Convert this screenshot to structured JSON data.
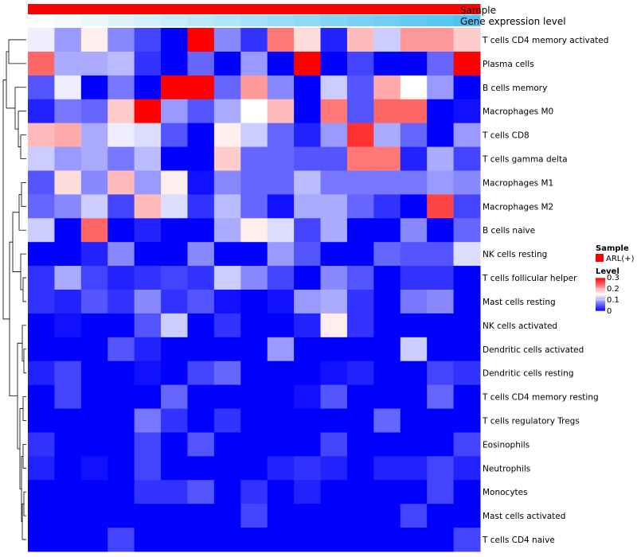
{
  "chart_data": {
    "type": "heatmap",
    "annotation_bars": [
      {
        "label": "Sample",
        "color": "#ff0000"
      },
      {
        "label": "Gene expression level",
        "colors_low_high": [
          "#ffffff",
          "#4cc3f2"
        ]
      }
    ],
    "rows": [
      "T cells CD4 memory activated",
      "Plasma cells",
      "B cells memory",
      "Macrophages M0",
      "T cells CD8",
      "T cells gamma delta",
      "Macrophages M1",
      "Macrophages M2",
      "B cells naive",
      "NK cells resting",
      "T cells follicular helper",
      "Mast cells resting",
      "NK cells activated",
      "Dendritic cells activated",
      "Dendritic cells resting",
      "T cells CD4 memory resting",
      "T cells regulatory  Tregs",
      "Eosinophils",
      "Neutrophils",
      "Monocytes",
      "Mast cells activated",
      "T cells CD4 naive"
    ],
    "n_columns": 17,
    "values": [
      [
        0.14,
        0.09,
        0.16,
        0.08,
        0.04,
        0.0,
        0.3,
        0.08,
        0.03,
        0.23,
        0.17,
        0.02,
        0.19,
        0.12,
        0.21,
        0.21,
        0.18
      ],
      [
        0.24,
        0.1,
        0.1,
        0.11,
        0.03,
        0.0,
        0.06,
        0.0,
        0.09,
        0.0,
        0.3,
        0.0,
        0.04,
        0.0,
        0.0,
        0.06,
        0.3
      ],
      [
        0.05,
        0.14,
        0.0,
        0.07,
        0.0,
        0.3,
        0.3,
        0.06,
        0.21,
        0.08,
        0.0,
        0.12,
        0.05,
        0.2,
        0.15,
        0.09,
        0.0
      ],
      [
        0.02,
        0.07,
        0.06,
        0.18,
        0.3,
        0.09,
        0.05,
        0.1,
        0.15,
        0.19,
        0.0,
        0.23,
        0.05,
        0.24,
        0.24,
        0.0,
        0.01
      ],
      [
        0.19,
        0.2,
        0.1,
        0.14,
        0.13,
        0.05,
        0.0,
        0.16,
        0.12,
        0.06,
        0.02,
        0.09,
        0.27,
        0.1,
        0.06,
        0.0,
        0.09
      ],
      [
        0.12,
        0.09,
        0.1,
        0.07,
        0.11,
        0.0,
        0.0,
        0.18,
        0.06,
        0.06,
        0.05,
        0.05,
        0.23,
        0.23,
        0.02,
        0.1,
        0.04
      ],
      [
        0.05,
        0.17,
        0.08,
        0.19,
        0.09,
        0.16,
        0.01,
        0.08,
        0.06,
        0.06,
        0.11,
        0.07,
        0.07,
        0.07,
        0.07,
        0.09,
        0.08
      ],
      [
        0.06,
        0.08,
        0.12,
        0.04,
        0.19,
        0.13,
        0.03,
        0.11,
        0.06,
        0.01,
        0.1,
        0.1,
        0.06,
        0.03,
        0.0,
        0.26,
        0.04
      ],
      [
        0.12,
        0.0,
        0.24,
        0.0,
        0.02,
        0.0,
        0.0,
        0.1,
        0.16,
        0.13,
        0.04,
        0.1,
        0.0,
        0.0,
        0.08,
        0.0,
        0.06
      ],
      [
        0.0,
        0.0,
        0.02,
        0.08,
        0.0,
        0.0,
        0.08,
        0.0,
        0.0,
        0.09,
        0.05,
        0.0,
        0.0,
        0.06,
        0.05,
        0.05,
        0.13
      ],
      [
        0.03,
        0.1,
        0.04,
        0.02,
        0.03,
        0.04,
        0.03,
        0.12,
        0.08,
        0.04,
        0.0,
        0.08,
        0.05,
        0.0,
        0.03,
        0.03,
        0.0
      ],
      [
        0.03,
        0.02,
        0.05,
        0.03,
        0.08,
        0.03,
        0.05,
        0.01,
        0.0,
        0.01,
        0.09,
        0.1,
        0.03,
        0.0,
        0.07,
        0.08,
        0.0
      ],
      [
        0.0,
        0.01,
        0.0,
        0.0,
        0.05,
        0.12,
        0.0,
        0.03,
        0.0,
        0.0,
        0.02,
        0.16,
        0.03,
        0.0,
        0.0,
        0.0,
        0.0
      ],
      [
        0.0,
        0.0,
        0.0,
        0.05,
        0.02,
        0.0,
        0.0,
        0.0,
        0.0,
        0.09,
        0.0,
        0.0,
        0.0,
        0.0,
        0.12,
        0.0,
        0.0
      ],
      [
        0.02,
        0.04,
        0.0,
        0.0,
        0.01,
        0.0,
        0.04,
        0.06,
        0.0,
        0.0,
        0.0,
        0.01,
        0.02,
        0.0,
        0.0,
        0.04,
        0.03
      ],
      [
        0.0,
        0.04,
        0.0,
        0.0,
        0.0,
        0.06,
        0.0,
        0.0,
        0.0,
        0.0,
        0.01,
        0.05,
        0.0,
        0.0,
        0.0,
        0.06,
        0.0
      ],
      [
        0.0,
        0.0,
        0.0,
        0.0,
        0.07,
        0.03,
        0.0,
        0.03,
        0.0,
        0.0,
        0.0,
        0.0,
        0.0,
        0.06,
        0.0,
        0.0,
        0.0
      ],
      [
        0.03,
        0.0,
        0.0,
        0.0,
        0.04,
        0.0,
        0.05,
        0.0,
        0.0,
        0.0,
        0.0,
        0.04,
        0.0,
        0.0,
        0.0,
        0.0,
        0.04
      ],
      [
        0.02,
        0.0,
        0.01,
        0.0,
        0.04,
        0.0,
        0.0,
        0.0,
        0.0,
        0.02,
        0.03,
        0.02,
        0.0,
        0.02,
        0.02,
        0.04,
        0.02
      ],
      [
        0.0,
        0.0,
        0.0,
        0.0,
        0.03,
        0.03,
        0.05,
        0.0,
        0.03,
        0.0,
        0.02,
        0.0,
        0.0,
        0.0,
        0.0,
        0.04,
        0.0
      ],
      [
        0.0,
        0.0,
        0.0,
        0.0,
        0.0,
        0.0,
        0.0,
        0.0,
        0.04,
        0.0,
        0.0,
        0.0,
        0.0,
        0.0,
        0.04,
        0.0,
        0.0
      ],
      [
        0.0,
        0.0,
        0.0,
        0.04,
        0.0,
        0.0,
        0.0,
        0.0,
        0.0,
        0.0,
        0.0,
        0.0,
        0.0,
        0.0,
        0.0,
        0.0,
        0.04
      ]
    ],
    "color_scale": {
      "min": 0,
      "max": 0.3,
      "low": "#0000ff",
      "mid": "#ffffff",
      "high": "#ff0000",
      "mid_value": 0.15
    },
    "legend": {
      "sample_title": "Sample",
      "sample_item": "ARL(+)",
      "sample_color": "#ff0000",
      "level_title": "Level",
      "level_ticks": [
        0.3,
        0.2,
        0.1,
        0
      ],
      "level_tick_labels": [
        "0.3",
        "0.2",
        "0.1",
        "0"
      ]
    },
    "dendrogram": "row",
    "legend_position": "right"
  }
}
